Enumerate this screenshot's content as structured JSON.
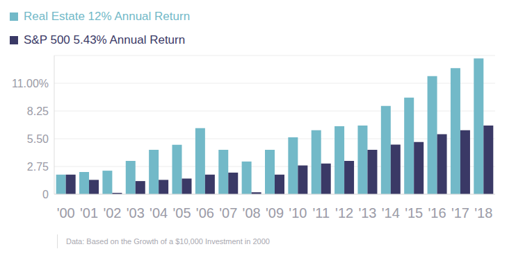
{
  "chart_data": {
    "type": "bar",
    "categories": [
      "'00",
      "'01",
      "'02",
      "'03",
      "'04",
      "'05",
      "'06",
      "'07",
      "'08",
      "'09",
      "'10",
      "'11",
      "'12",
      "'13",
      "'14",
      "'15",
      "'16",
      "'17",
      "'18"
    ],
    "series": [
      {
        "name": "Real Estate 12% Annual Return",
        "color": "#72b9c8",
        "values": [
          1.94,
          2.2,
          2.33,
          3.3,
          4.4,
          4.9,
          6.54,
          4.4,
          3.24,
          4.4,
          5.63,
          6.34,
          6.73,
          6.8,
          8.74,
          9.58,
          11.7,
          12.5,
          13.46
        ]
      },
      {
        "name": "S&P 500 5.43% Annual Return",
        "color": "#3a3966",
        "values": [
          1.94,
          1.42,
          0.13,
          1.3,
          1.42,
          1.55,
          1.94,
          2.14,
          0.19,
          1.94,
          2.85,
          3.04,
          3.3,
          4.4,
          4.92,
          5.18,
          5.95,
          6.34,
          6.8
        ]
      }
    ],
    "ylim": [
      0,
      13.75
    ],
    "yticks": [
      0,
      2.75,
      {
        "value": 5.5,
        "label": "5.50"
      },
      8.25,
      {
        "value": 11,
        "label": "11.00%"
      }
    ],
    "grid": true,
    "legend": "top-left",
    "annotation": "Data: Based on the Growth of a $10,000 Investment in 2000"
  }
}
